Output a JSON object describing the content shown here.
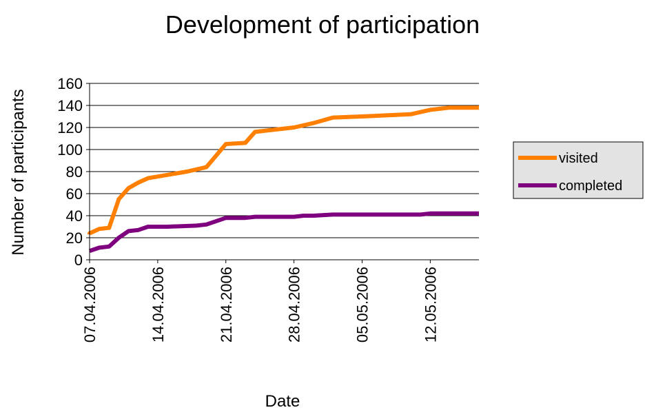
{
  "chart_data": {
    "type": "line",
    "title": "Development of participation",
    "xlabel": "Date",
    "ylabel": "Number of participants",
    "ylim": [
      0,
      160
    ],
    "yticks": [
      0,
      20,
      40,
      60,
      80,
      100,
      120,
      140,
      160
    ],
    "xlim": [
      "07.04.2006",
      "17.05.2006"
    ],
    "xticks": [
      "07.04.2006",
      "14.04.2006",
      "21.04.2006",
      "28.04.2006",
      "05.05.2006",
      "12.05.2006"
    ],
    "grid": "horizontal",
    "legend_position": "right",
    "series": [
      {
        "name": "visited",
        "color": "#FF7F00",
        "points": [
          [
            "07.04.2006",
            23
          ],
          [
            "07.04.2006",
            24
          ],
          [
            "08.04.2006",
            28
          ],
          [
            "09.04.2006",
            29
          ],
          [
            "10.04.2006",
            55
          ],
          [
            "11.04.2006",
            65
          ],
          [
            "12.04.2006",
            70
          ],
          [
            "13.04.2006",
            74
          ],
          [
            "15.04.2006",
            77
          ],
          [
            "17.04.2006",
            80
          ],
          [
            "18.04.2006",
            82
          ],
          [
            "19.04.2006",
            84
          ],
          [
            "21.04.2006",
            105
          ],
          [
            "23.04.2006",
            106
          ],
          [
            "24.04.2006",
            116
          ],
          [
            "28.04.2006",
            120
          ],
          [
            "30.04.2006",
            124
          ],
          [
            "02.05.2006",
            129
          ],
          [
            "05.05.2006",
            130
          ],
          [
            "10.05.2006",
            132
          ],
          [
            "12.05.2006",
            136
          ],
          [
            "14.05.2006",
            138
          ],
          [
            "17.05.2006",
            138
          ]
        ]
      },
      {
        "name": "completed",
        "color": "#7F007F",
        "points": [
          [
            "07.04.2006",
            8
          ],
          [
            "08.04.2006",
            11
          ],
          [
            "09.04.2006",
            12
          ],
          [
            "10.04.2006",
            20
          ],
          [
            "11.04.2006",
            26
          ],
          [
            "12.04.2006",
            27
          ],
          [
            "13.04.2006",
            30
          ],
          [
            "15.04.2006",
            30
          ],
          [
            "18.04.2006",
            31
          ],
          [
            "19.04.2006",
            32
          ],
          [
            "21.04.2006",
            38
          ],
          [
            "23.04.2006",
            38
          ],
          [
            "24.04.2006",
            39
          ],
          [
            "28.04.2006",
            39
          ],
          [
            "29.04.2006",
            40
          ],
          [
            "30.04.2006",
            40
          ],
          [
            "02.05.2006",
            41
          ],
          [
            "10.05.2006",
            41
          ],
          [
            "11.05.2006",
            41
          ],
          [
            "12.05.2006",
            42
          ],
          [
            "17.05.2006",
            42
          ]
        ]
      }
    ]
  }
}
